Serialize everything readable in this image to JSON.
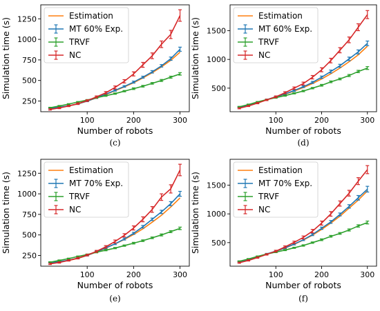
{
  "chart_data": [
    {
      "type": "line",
      "caption": "(c)",
      "xlabel": "Number of robots",
      "ylabel": "Simulation time (s)",
      "xlim": [
        0,
        320
      ],
      "ylim": [
        120,
        1420
      ],
      "xticks": [
        100,
        200,
        300
      ],
      "yticks": [
        250,
        500,
        750,
        1000,
        1250
      ],
      "grid": false,
      "legend_position": "top-left",
      "x": [
        20,
        40,
        60,
        80,
        100,
        120,
        140,
        160,
        180,
        200,
        220,
        240,
        260,
        280,
        300
      ],
      "series": [
        {
          "name": "Estimation",
          "color": "#ff7f0e",
          "errorbars": false,
          "values": [
            160,
            172,
            190,
            215,
            248,
            288,
            330,
            375,
            422,
            472,
            530,
            595,
            665,
            745,
            845
          ]
        },
        {
          "name": "MT 60% Exp.",
          "color": "#1f77b4",
          "errorbars": true,
          "values": [
            162,
            175,
            192,
            216,
            250,
            290,
            333,
            380,
            428,
            480,
            540,
            605,
            678,
            765,
            880
          ],
          "errors": [
            8,
            8,
            8,
            8,
            8,
            8,
            10,
            10,
            10,
            12,
            12,
            15,
            15,
            20,
            25
          ]
        },
        {
          "name": "TRVF",
          "color": "#2ca02c",
          "errorbars": true,
          "values": [
            168,
            190,
            212,
            238,
            262,
            290,
            315,
            340,
            370,
            400,
            430,
            465,
            500,
            540,
            580
          ],
          "errors": [
            6,
            6,
            6,
            6,
            6,
            8,
            8,
            8,
            8,
            10,
            10,
            10,
            12,
            12,
            15
          ]
        },
        {
          "name": "NC",
          "color": "#d62728",
          "errorbars": true,
          "values": [
            148,
            165,
            190,
            218,
            255,
            300,
            350,
            415,
            490,
            580,
            690,
            800,
            940,
            1060,
            1290
          ],
          "errors": [
            8,
            8,
            8,
            10,
            10,
            12,
            15,
            18,
            20,
            25,
            30,
            35,
            40,
            50,
            70
          ]
        }
      ]
    },
    {
      "type": "line",
      "caption": "(d)",
      "xlabel": "Number of robots",
      "ylabel": "Simulation time (s)",
      "xlim": [
        0,
        320
      ],
      "ylim": [
        90,
        1950
      ],
      "xticks": [
        100,
        200,
        300
      ],
      "yticks": [
        500,
        1000,
        1500
      ],
      "grid": false,
      "legend_position": "top-left",
      "x": [
        20,
        40,
        60,
        80,
        100,
        120,
        140,
        160,
        180,
        200,
        220,
        240,
        260,
        280,
        300
      ],
      "series": [
        {
          "name": "Estimation",
          "color": "#ff7f0e",
          "errorbars": false,
          "values": [
            165,
            200,
            245,
            295,
            345,
            395,
            450,
            510,
            580,
            660,
            750,
            850,
            960,
            1080,
            1230
          ]
        },
        {
          "name": "MT 60% Exp.",
          "color": "#1f77b4",
          "errorbars": true,
          "values": [
            168,
            205,
            250,
            300,
            350,
            400,
            458,
            525,
            600,
            690,
            790,
            890,
            1010,
            1130,
            1280
          ],
          "errors": [
            10,
            10,
            10,
            10,
            12,
            12,
            15,
            15,
            18,
            20,
            25,
            25,
            30,
            35,
            40
          ]
        },
        {
          "name": "TRVF",
          "color": "#2ca02c",
          "errorbars": true,
          "values": [
            175,
            215,
            260,
            300,
            335,
            370,
            410,
            450,
            500,
            550,
            610,
            660,
            720,
            790,
            850
          ],
          "errors": [
            8,
            8,
            8,
            8,
            10,
            10,
            10,
            12,
            12,
            15,
            15,
            15,
            18,
            20,
            25
          ]
        },
        {
          "name": "NC",
          "color": "#d62728",
          "errorbars": true,
          "values": [
            150,
            190,
            240,
            295,
            350,
            420,
            500,
            580,
            690,
            820,
            980,
            1160,
            1340,
            1560,
            1780
          ],
          "errors": [
            10,
            10,
            12,
            12,
            15,
            18,
            20,
            25,
            30,
            35,
            40,
            45,
            50,
            60,
            70
          ]
        }
      ]
    },
    {
      "type": "line",
      "caption": "(e)",
      "xlabel": "Number of robots",
      "ylabel": "Simulation time (s)",
      "xlim": [
        0,
        320
      ],
      "ylim": [
        120,
        1420
      ],
      "xticks": [
        100,
        200,
        300
      ],
      "yticks": [
        250,
        500,
        750,
        1000,
        1250
      ],
      "grid": false,
      "legend_position": "top-left",
      "x": [
        20,
        40,
        60,
        80,
        100,
        120,
        140,
        160,
        180,
        200,
        220,
        240,
        260,
        280,
        300
      ],
      "series": [
        {
          "name": "Estimation",
          "color": "#ff7f0e",
          "errorbars": false,
          "values": [
            160,
            172,
            190,
            215,
            250,
            292,
            340,
            390,
            445,
            505,
            575,
            655,
            740,
            840,
            950
          ]
        },
        {
          "name": "MT 70% Exp.",
          "color": "#1f77b4",
          "errorbars": true,
          "values": [
            162,
            175,
            193,
            218,
            252,
            295,
            342,
            392,
            450,
            520,
            600,
            690,
            780,
            880,
            1000
          ],
          "errors": [
            8,
            8,
            8,
            8,
            8,
            10,
            10,
            10,
            12,
            12,
            15,
            15,
            20,
            25,
            30
          ]
        },
        {
          "name": "TRVF",
          "color": "#2ca02c",
          "errorbars": true,
          "values": [
            168,
            190,
            212,
            238,
            262,
            290,
            315,
            340,
            370,
            400,
            430,
            465,
            500,
            540,
            580
          ],
          "errors": [
            6,
            6,
            6,
            6,
            6,
            8,
            8,
            8,
            8,
            10,
            10,
            10,
            12,
            12,
            15
          ]
        },
        {
          "name": "NC",
          "color": "#d62728",
          "errorbars": true,
          "values": [
            148,
            165,
            190,
            218,
            255,
            300,
            355,
            420,
            495,
            585,
            690,
            810,
            960,
            1060,
            1290
          ],
          "errors": [
            8,
            8,
            8,
            10,
            10,
            12,
            15,
            18,
            20,
            25,
            30,
            35,
            40,
            50,
            70
          ]
        }
      ]
    },
    {
      "type": "line",
      "caption": "(f)",
      "xlabel": "Number of robots",
      "ylabel": "Simulation time (s)",
      "xlim": [
        0,
        320
      ],
      "ylim": [
        90,
        1950
      ],
      "xticks": [
        100,
        200,
        300
      ],
      "yticks": [
        500,
        1000,
        1500
      ],
      "grid": false,
      "legend_position": "top-left",
      "x": [
        20,
        40,
        60,
        80,
        100,
        120,
        140,
        160,
        180,
        200,
        220,
        240,
        260,
        280,
        300
      ],
      "series": [
        {
          "name": "Estimation",
          "color": "#ff7f0e",
          "errorbars": false,
          "values": [
            165,
            205,
            250,
            300,
            350,
            405,
            470,
            545,
            630,
            730,
            840,
            960,
            1100,
            1240,
            1400
          ]
        },
        {
          "name": "MT 70% Exp.",
          "color": "#1f77b4",
          "errorbars": true,
          "values": [
            168,
            208,
            253,
            303,
            352,
            408,
            475,
            550,
            640,
            750,
            860,
            990,
            1130,
            1280,
            1430
          ],
          "errors": [
            10,
            10,
            10,
            10,
            12,
            12,
            15,
            15,
            18,
            20,
            25,
            25,
            30,
            40,
            50
          ]
        },
        {
          "name": "TRVF",
          "color": "#2ca02c",
          "errorbars": true,
          "values": [
            175,
            215,
            260,
            300,
            335,
            370,
            410,
            450,
            500,
            550,
            610,
            660,
            720,
            790,
            850
          ],
          "errors": [
            8,
            8,
            8,
            8,
            10,
            10,
            10,
            12,
            12,
            15,
            15,
            15,
            18,
            20,
            25
          ]
        },
        {
          "name": "NC",
          "color": "#d62728",
          "errorbars": true,
          "values": [
            150,
            190,
            240,
            295,
            352,
            425,
            505,
            590,
            700,
            840,
            1000,
            1180,
            1360,
            1570,
            1770
          ],
          "errors": [
            10,
            10,
            12,
            12,
            15,
            18,
            20,
            25,
            30,
            35,
            40,
            45,
            50,
            60,
            70
          ]
        }
      ]
    }
  ]
}
